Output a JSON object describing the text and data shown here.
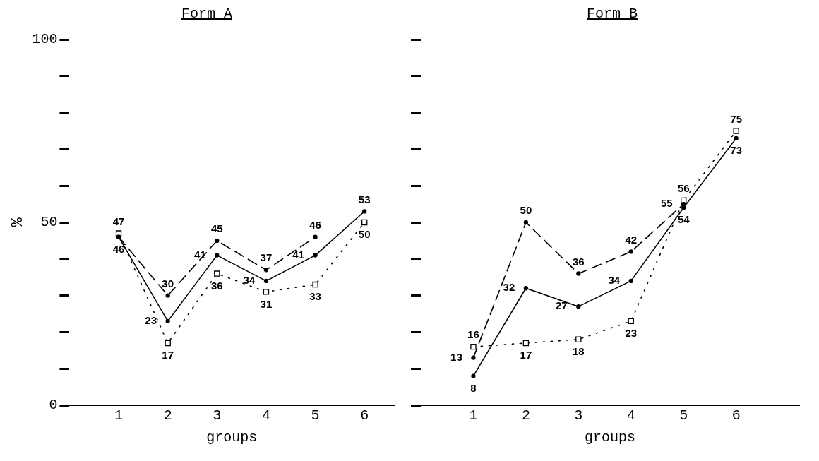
{
  "chart_data": [
    {
      "type": "line",
      "title": "Form A",
      "xlabel": "groups",
      "ylabel": "%",
      "x": [
        1,
        2,
        3,
        4,
        5,
        6
      ],
      "xlim": [
        0,
        6.6
      ],
      "xticks": [
        1,
        2,
        3,
        4,
        5,
        6
      ],
      "ylim": [
        0,
        100
      ],
      "yticks": [
        0,
        {
          "value": 10,
          "label": null
        },
        {
          "value": 20,
          "label": null
        },
        {
          "value": 30,
          "label": null
        },
        {
          "value": 40,
          "label": null
        },
        50,
        {
          "value": 60,
          "label": null
        },
        {
          "value": 70,
          "label": null
        },
        {
          "value": 80,
          "label": null
        },
        {
          "value": 90,
          "label": null
        },
        100
      ],
      "grid": false,
      "legend": false,
      "series": [
        {
          "color": "#000000",
          "line_style": "solid",
          "marker": "circle",
          "values": [
            46,
            23,
            41,
            34,
            41,
            53
          ],
          "value_labels": [
            "46",
            "23",
            "41",
            "34",
            "41",
            "53"
          ]
        },
        {
          "color": "#000000",
          "line_style": "dashed",
          "marker": "circle",
          "values": [
            46,
            30,
            45,
            37,
            46,
            null
          ],
          "value_labels": [
            null,
            "30",
            "45",
            "37",
            "46",
            null
          ]
        },
        {
          "color": "#000000",
          "line_style": "dotted",
          "marker": "square",
          "values": [
            47,
            17,
            36,
            31,
            33,
            50
          ],
          "value_labels": [
            "47",
            "17",
            "36",
            "31",
            "33",
            "50"
          ]
        }
      ]
    },
    {
      "type": "line",
      "title": "Form B",
      "xlabel": "groups",
      "x": [
        1,
        2,
        3,
        4,
        5,
        6
      ],
      "xlim": [
        0,
        7.2
      ],
      "xticks": [
        1,
        2,
        3,
        4,
        5,
        6
      ],
      "ylim": [
        0,
        100
      ],
      "yticks": [
        0,
        {
          "value": 10,
          "label": null
        },
        {
          "value": 20,
          "label": null
        },
        {
          "value": 30,
          "label": null
        },
        {
          "value": 40,
          "label": null
        },
        50,
        {
          "value": 60,
          "label": null
        },
        {
          "value": 70,
          "label": null
        },
        {
          "value": 80,
          "label": null
        },
        {
          "value": 90,
          "label": null
        },
        100
      ],
      "tick_labels": "x",
      "grid": false,
      "legend": false,
      "series": [
        {
          "color": "#000000",
          "line_style": "solid",
          "marker": "circle",
          "values": [
            8,
            32,
            27,
            34,
            54,
            73
          ],
          "value_labels": [
            "8",
            "32",
            "27",
            "34",
            "54",
            "73"
          ]
        },
        {
          "color": "#000000",
          "line_style": "dashed",
          "marker": "circle",
          "values": [
            13,
            50,
            36,
            42,
            55,
            null
          ],
          "value_labels": [
            "13",
            "50",
            "36",
            "42",
            "55",
            null
          ]
        },
        {
          "color": "#000000",
          "line_style": "dotted",
          "marker": "square",
          "values": [
            16,
            17,
            18,
            23,
            56,
            75
          ],
          "value_labels": [
            "16",
            "17",
            "18",
            "23",
            "56",
            "75"
          ]
        }
      ]
    }
  ]
}
